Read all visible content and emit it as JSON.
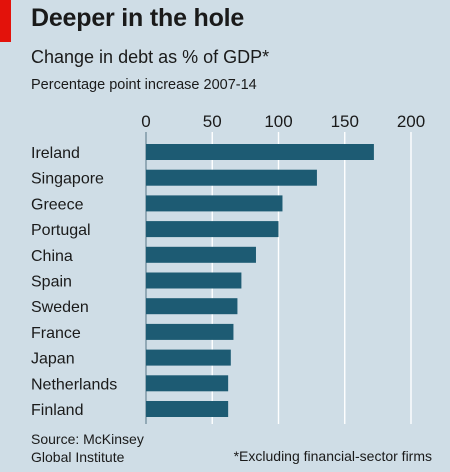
{
  "header": {
    "title": "Deeper in the hole",
    "subtitle": "Change in debt as % of GDP*",
    "note": "Percentage point increase 2007-14"
  },
  "footer": {
    "source_line1": "Source: McKinsey",
    "source_line2": "Global Institute",
    "footnote": "*Excluding financial-sector firms"
  },
  "colors": {
    "bar": "#1d5b73",
    "background": "#cfdde6",
    "accent": "#e3120b"
  },
  "chart_data": {
    "type": "bar",
    "orientation": "horizontal",
    "title": "Deeper in the hole",
    "subtitle": "Change in debt as % of GDP*",
    "xlabel": "",
    "ylabel": "",
    "xlim": [
      0,
      200
    ],
    "ticks": [
      0,
      50,
      100,
      150,
      200
    ],
    "grid": true,
    "categories": [
      "Ireland",
      "Singapore",
      "Greece",
      "Portugal",
      "China",
      "Spain",
      "Sweden",
      "France",
      "Japan",
      "Netherlands",
      "Finland"
    ],
    "values": [
      172,
      129,
      103,
      100,
      83,
      72,
      69,
      66,
      64,
      62,
      62
    ]
  }
}
